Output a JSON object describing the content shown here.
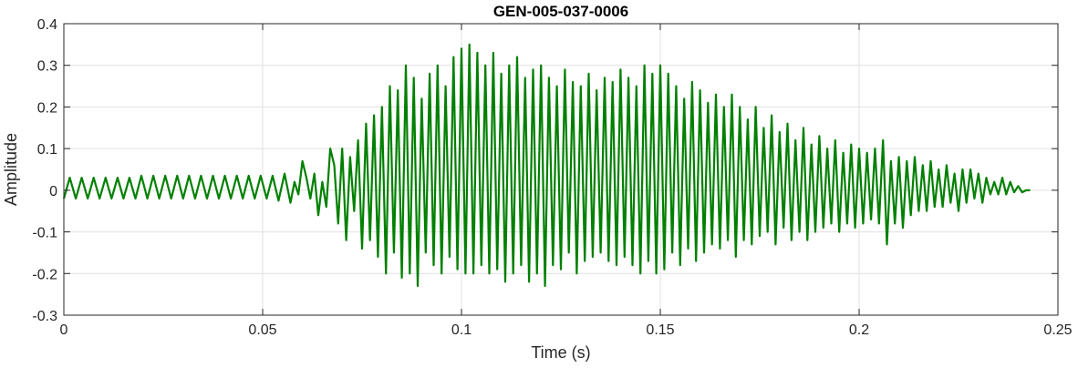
{
  "chart_data": {
    "type": "line",
    "title": "GEN-005-037-0006",
    "xlabel": "Time (s)",
    "ylabel": "Amplitude",
    "xlim": [
      0,
      0.25
    ],
    "ylim": [
      -0.3,
      0.4
    ],
    "xticks": [
      0,
      0.05,
      0.1,
      0.15,
      0.2,
      0.25
    ],
    "xtick_labels": [
      "0",
      "0.05",
      "0.1",
      "0.15",
      "0.2",
      "0.25"
    ],
    "yticks": [
      -0.3,
      -0.2,
      -0.1,
      0,
      0.1,
      0.2,
      0.3,
      0.4
    ],
    "ytick_labels": [
      "-0.3",
      "-0.2",
      "-0.1",
      "0",
      "0.1",
      "0.2",
      "0.3",
      "0.4"
    ],
    "grid": true,
    "series": [
      {
        "color": "#008000",
        "x": [
          0,
          0.0015,
          0.003,
          0.0045,
          0.006,
          0.0075,
          0.009,
          0.0105,
          0.012,
          0.0135,
          0.015,
          0.0165,
          0.018,
          0.0195,
          0.021,
          0.0225,
          0.024,
          0.0255,
          0.027,
          0.0285,
          0.03,
          0.0315,
          0.033,
          0.0345,
          0.036,
          0.0375,
          0.039,
          0.0405,
          0.042,
          0.0435,
          0.045,
          0.0465,
          0.048,
          0.0495,
          0.051,
          0.0525,
          0.054,
          0.0555,
          0.057,
          0.058,
          0.059,
          0.06,
          0.061,
          0.062,
          0.063,
          0.064,
          0.065,
          0.066,
          0.067,
          0.068,
          0.069,
          0.07,
          0.071,
          0.072,
          0.073,
          0.074,
          0.075,
          0.076,
          0.077,
          0.078,
          0.079,
          0.08,
          0.081,
          0.082,
          0.083,
          0.084,
          0.085,
          0.086,
          0.087,
          0.088,
          0.089,
          0.09,
          0.091,
          0.092,
          0.093,
          0.094,
          0.095,
          0.096,
          0.097,
          0.098,
          0.099,
          0.1,
          0.101,
          0.102,
          0.103,
          0.104,
          0.105,
          0.106,
          0.107,
          0.108,
          0.109,
          0.11,
          0.111,
          0.112,
          0.113,
          0.114,
          0.115,
          0.116,
          0.117,
          0.118,
          0.119,
          0.12,
          0.121,
          0.122,
          0.123,
          0.124,
          0.125,
          0.126,
          0.127,
          0.128,
          0.129,
          0.13,
          0.131,
          0.132,
          0.133,
          0.134,
          0.135,
          0.136,
          0.137,
          0.138,
          0.139,
          0.14,
          0.141,
          0.142,
          0.143,
          0.144,
          0.145,
          0.146,
          0.147,
          0.148,
          0.149,
          0.15,
          0.151,
          0.152,
          0.153,
          0.154,
          0.155,
          0.156,
          0.157,
          0.158,
          0.159,
          0.16,
          0.161,
          0.162,
          0.163,
          0.164,
          0.165,
          0.166,
          0.167,
          0.168,
          0.169,
          0.17,
          0.171,
          0.172,
          0.173,
          0.174,
          0.175,
          0.176,
          0.177,
          0.178,
          0.179,
          0.18,
          0.181,
          0.182,
          0.183,
          0.184,
          0.185,
          0.186,
          0.187,
          0.188,
          0.189,
          0.19,
          0.191,
          0.192,
          0.193,
          0.194,
          0.195,
          0.196,
          0.197,
          0.198,
          0.199,
          0.2,
          0.201,
          0.202,
          0.203,
          0.204,
          0.205,
          0.206,
          0.207,
          0.208,
          0.209,
          0.21,
          0.211,
          0.212,
          0.213,
          0.214,
          0.215,
          0.216,
          0.217,
          0.218,
          0.219,
          0.22,
          0.221,
          0.222,
          0.223,
          0.224,
          0.225,
          0.226,
          0.227,
          0.228,
          0.229,
          0.23,
          0.231,
          0.232,
          0.233,
          0.234,
          0.235,
          0.236,
          0.237,
          0.238,
          0.239,
          0.24,
          0.241,
          0.242,
          0.243
        ],
        "y": [
          -0.02,
          0.03,
          -0.02,
          0.03,
          -0.02,
          0.03,
          -0.02,
          0.03,
          -0.02,
          0.03,
          -0.02,
          0.03,
          -0.02,
          0.035,
          -0.02,
          0.035,
          -0.02,
          0.035,
          -0.02,
          0.035,
          -0.02,
          0.035,
          -0.02,
          0.035,
          -0.02,
          0.035,
          -0.02,
          0.035,
          -0.02,
          0.035,
          -0.02,
          0.035,
          -0.02,
          0.035,
          -0.02,
          0.035,
          -0.025,
          0.04,
          -0.03,
          0.02,
          -0.01,
          0.07,
          0.03,
          -0.02,
          0.04,
          -0.06,
          0.02,
          -0.04,
          0.1,
          0.06,
          -0.08,
          0.1,
          -0.12,
          0.08,
          -0.05,
          0.12,
          -0.14,
          0.16,
          -0.12,
          0.18,
          -0.16,
          0.2,
          -0.2,
          0.25,
          -0.15,
          0.24,
          -0.21,
          0.3,
          -0.2,
          0.27,
          -0.23,
          0.22,
          -0.15,
          0.28,
          -0.18,
          0.3,
          -0.2,
          0.25,
          -0.16,
          0.32,
          -0.19,
          0.34,
          -0.2,
          0.35,
          -0.2,
          0.33,
          -0.18,
          0.3,
          -0.2,
          0.33,
          -0.19,
          0.28,
          -0.22,
          0.3,
          -0.2,
          0.32,
          -0.18,
          0.27,
          -0.22,
          0.29,
          -0.2,
          0.3,
          -0.23,
          0.27,
          -0.18,
          0.25,
          -0.19,
          0.29,
          -0.15,
          0.26,
          -0.2,
          0.25,
          -0.17,
          0.28,
          -0.16,
          0.24,
          -0.15,
          0.27,
          -0.17,
          0.26,
          -0.18,
          0.29,
          -0.16,
          0.27,
          -0.18,
          0.25,
          -0.2,
          0.3,
          -0.17,
          0.28,
          -0.2,
          0.3,
          -0.19,
          0.28,
          -0.15,
          0.25,
          -0.18,
          0.22,
          -0.14,
          0.26,
          -0.17,
          0.24,
          -0.15,
          0.21,
          -0.13,
          0.23,
          -0.14,
          0.2,
          -0.12,
          0.23,
          -0.16,
          0.2,
          -0.12,
          0.17,
          -0.13,
          0.2,
          -0.11,
          0.15,
          -0.1,
          0.18,
          -0.13,
          0.14,
          -0.09,
          0.16,
          -0.12,
          0.12,
          -0.1,
          0.15,
          -0.12,
          0.11,
          -0.1,
          0.13,
          -0.09,
          0.1,
          -0.08,
          0.12,
          -0.1,
          0.09,
          -0.08,
          0.11,
          -0.09,
          0.1,
          -0.08,
          0.09,
          -0.07,
          0.1,
          -0.08,
          0.12,
          -0.13,
          0.07,
          -0.08,
          0.08,
          -0.09,
          0.07,
          -0.06,
          0.08,
          -0.05,
          0.06,
          -0.05,
          0.07,
          -0.04,
          0.05,
          -0.04,
          0.06,
          -0.03,
          0.04,
          -0.05,
          0.05,
          -0.03,
          0.05,
          -0.02,
          0.04,
          -0.03,
          0.03,
          -0.01,
          0.02,
          -0.01,
          0.03,
          -0.01,
          0.02,
          -0.005,
          0.01,
          -0.005,
          0.0,
          0.0
        ]
      }
    ]
  }
}
